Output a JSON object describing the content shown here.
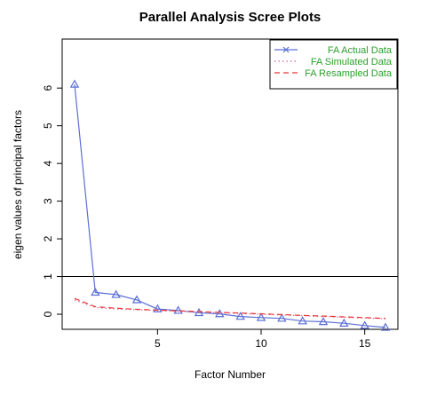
{
  "chart_data": {
    "type": "line",
    "title": "Parallel Analysis Scree Plots",
    "xlabel": "Factor Number",
    "ylabel": "eigen values of principal factors",
    "xlim": [
      0.4,
      16.6
    ],
    "ylim": [
      -0.4,
      7.3
    ],
    "xticks": [
      5,
      10,
      15
    ],
    "yticks": [
      0,
      1,
      2,
      3,
      4,
      5,
      6
    ],
    "x": [
      1,
      2,
      3,
      4,
      5,
      6,
      7,
      8,
      9,
      10,
      11,
      12,
      13,
      14,
      15,
      16
    ],
    "reference_line_y": 1,
    "legend_position": "top-right",
    "series": [
      {
        "name": "FA  Actual Data",
        "color": "#5b6fd6",
        "style": "solid",
        "marker": "triangle",
        "values": [
          6.1,
          0.58,
          0.52,
          0.38,
          0.14,
          0.1,
          0.04,
          0.01,
          -0.06,
          -0.09,
          -0.11,
          -0.18,
          -0.2,
          -0.24,
          -0.3,
          -0.35
        ]
      },
      {
        "name": "FA  Simulated Data",
        "color": "#e06080",
        "style": "dotted",
        "marker": "none",
        "values": [
          0.38,
          0.18,
          0.14,
          0.12,
          0.1,
          0.08,
          0.06,
          0.04,
          0.02,
          0.0,
          -0.02,
          -0.04,
          -0.06,
          -0.08,
          -0.1,
          -0.12
        ]
      },
      {
        "name": "FA  Resampled Data",
        "color": "#e83838",
        "style": "dashed",
        "marker": "none",
        "values": [
          0.42,
          0.2,
          0.16,
          0.13,
          0.11,
          0.09,
          0.07,
          0.05,
          0.03,
          0.01,
          -0.01,
          -0.03,
          -0.05,
          -0.07,
          -0.09,
          -0.11
        ]
      }
    ],
    "legend_text_color": "#2ca02c",
    "axis_color": "#000000"
  }
}
